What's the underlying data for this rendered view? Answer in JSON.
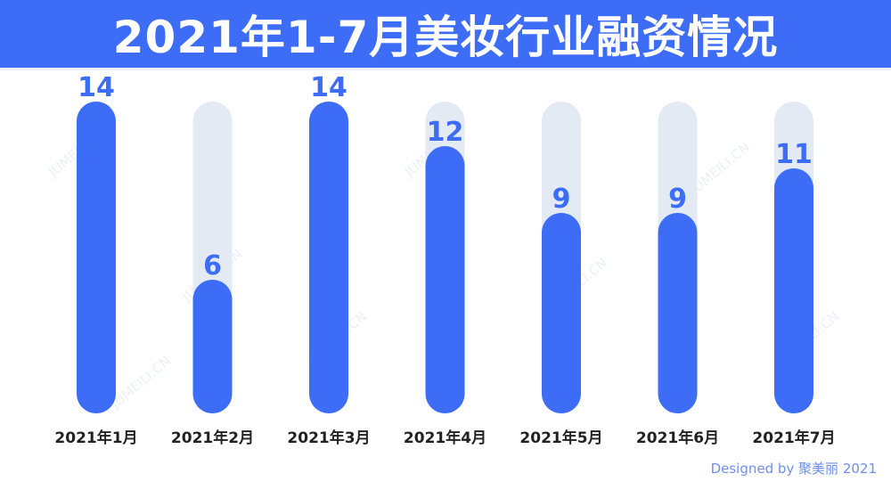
{
  "title": "2021年1-7月美妆行业融资情况",
  "credit": "Designed by 聚美丽 2021",
  "watermark": "JUMEILI.CN",
  "colors": {
    "banner": "#3d6cf6",
    "bar": "#3d6cf6",
    "track": "#e3eaf4",
    "label": "#3d6cf6",
    "axis_text": "#222222"
  },
  "chart_data": {
    "type": "bar",
    "categories": [
      "2021年1月",
      "2021年2月",
      "2021年3月",
      "2021年4月",
      "2021年5月",
      "2021年6月",
      "2021年7月"
    ],
    "values": [
      14,
      6,
      14,
      12,
      9,
      9,
      11
    ],
    "ylim": [
      0,
      14
    ],
    "grid": false,
    "data_labels": true
  }
}
